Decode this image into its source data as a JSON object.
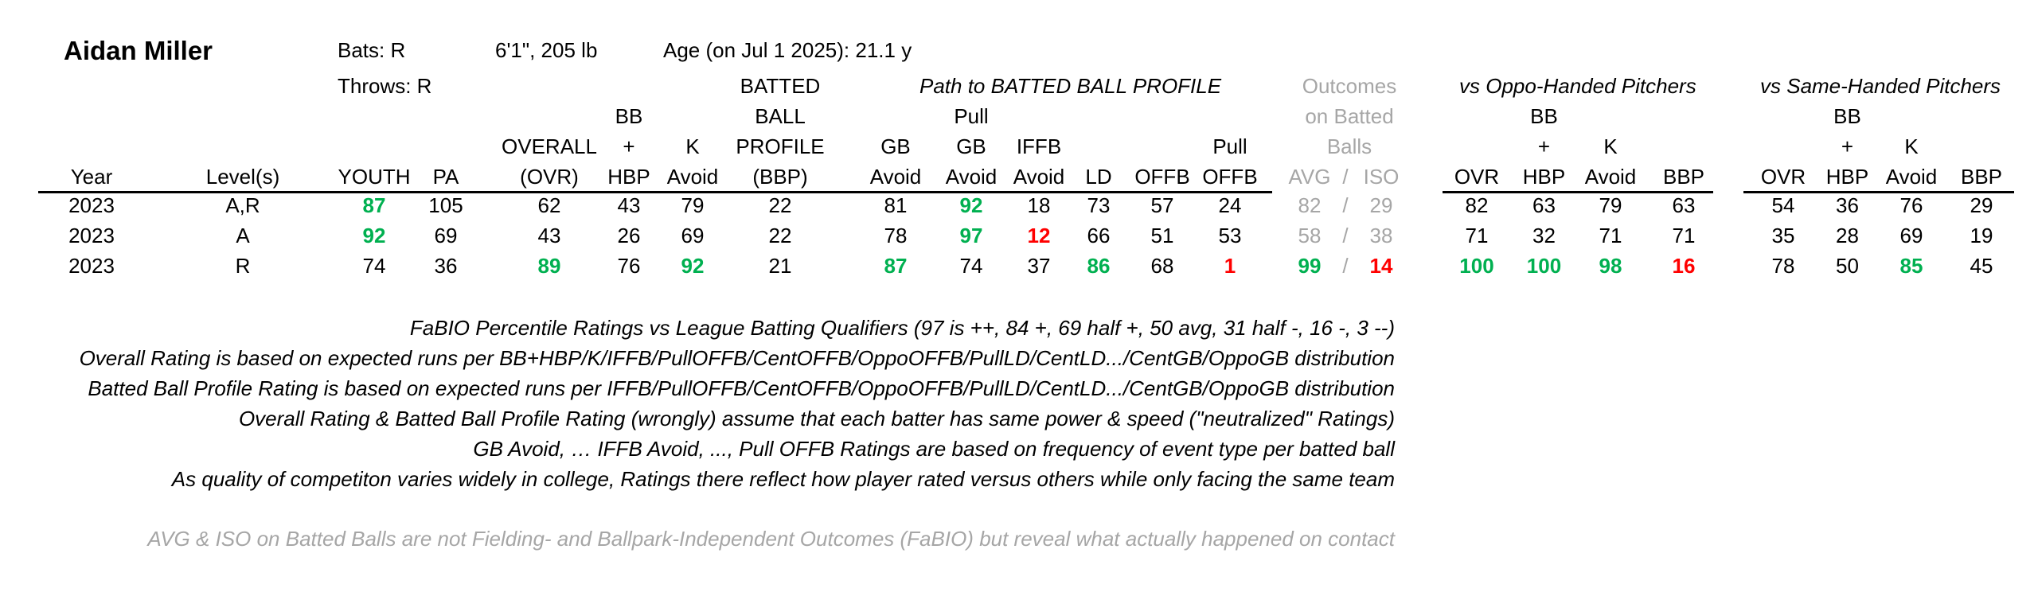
{
  "player": {
    "name": "Aidan Miller",
    "bats": "Bats: R",
    "throws": "Throws: R",
    "size": "6'1\", 205 lb",
    "age": "Age (on Jul 1 2025): 21.1 y"
  },
  "groups": {
    "path": "Path to BATTED BALL PROFILE",
    "outcomes": [
      "Outcomes",
      "on Batted",
      "Balls"
    ],
    "oppo": "vs Oppo-Handed Pitchers",
    "same": "vs Same-Handed Pitchers"
  },
  "headers": {
    "year": "Year",
    "level": "Level(s)",
    "youth": "YOUTH",
    "pa": "PA",
    "ovr_top": "OVERALL",
    "ovr": "(OVR)",
    "bb1": "BB",
    "bb2": "+",
    "bb3": "HBP",
    "k1": "K",
    "k2": "Avoid",
    "bbp1": "BATTED",
    "bbp2": "BALL",
    "bbp3": "PROFILE",
    "bbp4": "(BBP)",
    "gb1": "GB",
    "gb2": "Avoid",
    "pgb1": "Pull",
    "pgb2": "GB",
    "pgb3": "Avoid",
    "iffb1": "IFFB",
    "iffb2": "Avoid",
    "ld": "LD",
    "offb": "OFFB",
    "poffb1": "Pull",
    "poffb2": "OFFB",
    "avg": "AVG",
    "slash": "/",
    "iso": "ISO",
    "s_ovr": "OVR",
    "s_bb1": "BB",
    "s_bb2": "+",
    "s_bb3": "HBP",
    "s_k1": "K",
    "s_k2": "Avoid",
    "s_bbp": "BBP"
  },
  "colors": {
    "green": "#00b050",
    "red": "#ff0000",
    "gray": "#a6a6a6"
  },
  "rows": [
    {
      "year": "2023",
      "level": "A,R",
      "youth": "87",
      "pa": "105",
      "ovr": "62",
      "bbhbp": "43",
      "kavoid": "79",
      "bbp": "22",
      "gbavoid": "81",
      "pullgb": "92",
      "iffb": "18",
      "ld": "73",
      "offb": "57",
      "pulloffb": "24",
      "avg": "82",
      "iso": "29",
      "o_ovr": "82",
      "o_bb": "63",
      "o_k": "79",
      "o_bbp": "63",
      "s_ovr": "54",
      "s_bb": "36",
      "s_k": "76",
      "s_bbp": "29"
    },
    {
      "year": "2023",
      "level": "A",
      "youth": "92",
      "pa": "69",
      "ovr": "43",
      "bbhbp": "26",
      "kavoid": "69",
      "bbp": "22",
      "gbavoid": "78",
      "pullgb": "97",
      "iffb": "12",
      "ld": "66",
      "offb": "51",
      "pulloffb": "53",
      "avg": "58",
      "iso": "38",
      "o_ovr": "71",
      "o_bb": "32",
      "o_k": "71",
      "o_bbp": "71",
      "s_ovr": "35",
      "s_bb": "28",
      "s_k": "69",
      "s_bbp": "19"
    },
    {
      "year": "2023",
      "level": "R",
      "youth": "74",
      "pa": "36",
      "ovr": "89",
      "bbhbp": "76",
      "kavoid": "92",
      "bbp": "21",
      "gbavoid": "87",
      "pullgb": "74",
      "iffb": "37",
      "ld": "86",
      "offb": "68",
      "pulloffb": "1",
      "avg": "99",
      "iso": "14",
      "o_ovr": "100",
      "o_bb": "100",
      "o_k": "98",
      "o_bbp": "16",
      "s_ovr": "78",
      "s_bb": "50",
      "s_k": "85",
      "s_bbp": "45"
    }
  ],
  "notes": [
    "FaBIO Percentile Ratings vs League Batting Qualifiers (97 is ++, 84 +, 69 half +, 50 avg, 31 half -, 16 -, 3 --)",
    "Overall Rating is based on expected runs per BB+HBP/K/IFFB/PullOFFB/CentOFFB/OppoOFFB/PullLD/CentLD.../CentGB/OppoGB distribution",
    "Batted Ball Profile Rating is based on expected runs per IFFB/PullOFFB/CentOFFB/OppoOFFB/PullLD/CentLD.../CentGB/OppoGB distribution",
    "Overall Rating & Batted Ball Profile Rating (wrongly) assume that each batter has same power & speed (\"neutralized\" Ratings)",
    "GB Avoid, … IFFB Avoid, ..., Pull OFFB Ratings are based on frequency of event type per batted ball",
    "As quality of competiton varies widely in college, Ratings there reflect how player rated versus others while only facing the same team"
  ],
  "footnote": "AVG & ISO on Batted Balls are not Fielding- and Ballpark-Independent Outcomes (FaBIO) but reveal what actually happened on contact"
}
